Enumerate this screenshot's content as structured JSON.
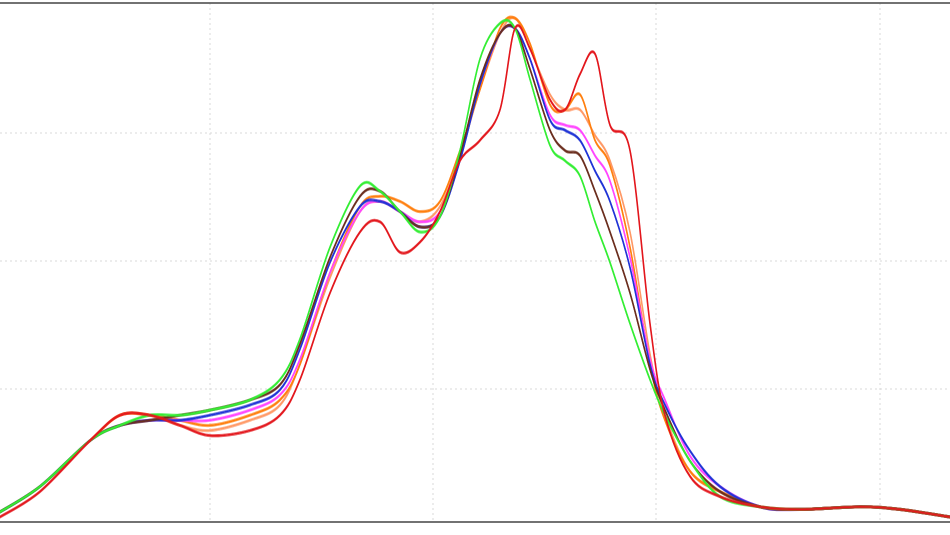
{
  "chart_data": {
    "type": "line",
    "title": "",
    "xlabel": "",
    "ylabel": "",
    "grid": true,
    "legend": "none",
    "xlim": [
      0,
      950
    ],
    "ylim": [
      0,
      1
    ],
    "series": [
      {
        "color": "#ff9966",
        "points": [
          [
            0,
            0.01
          ],
          [
            40,
            0.06
          ],
          [
            90,
            0.15
          ],
          [
            120,
            0.2
          ],
          [
            150,
            0.2
          ],
          [
            180,
            0.18
          ],
          [
            210,
            0.17
          ],
          [
            250,
            0.19
          ],
          [
            280,
            0.22
          ],
          [
            300,
            0.3
          ],
          [
            330,
            0.47
          ],
          [
            360,
            0.6
          ],
          [
            380,
            0.62
          ],
          [
            400,
            0.6
          ],
          [
            420,
            0.58
          ],
          [
            440,
            0.61
          ],
          [
            460,
            0.71
          ],
          [
            480,
            0.84
          ],
          [
            500,
            0.95
          ],
          [
            515,
            0.98
          ],
          [
            530,
            0.92
          ],
          [
            550,
            0.83
          ],
          [
            565,
            0.8
          ],
          [
            580,
            0.8
          ],
          [
            595,
            0.75
          ],
          [
            610,
            0.7
          ],
          [
            630,
            0.56
          ],
          [
            650,
            0.32
          ],
          [
            665,
            0.2
          ],
          [
            690,
            0.09
          ],
          [
            720,
            0.05
          ],
          [
            760,
            0.02
          ],
          [
            800,
            0.015
          ],
          [
            860,
            0.02
          ],
          [
            900,
            0.015
          ],
          [
            950,
            0.0
          ]
        ]
      },
      {
        "color": "#ff7f0e",
        "points": [
          [
            0,
            0.01
          ],
          [
            40,
            0.06
          ],
          [
            90,
            0.15
          ],
          [
            120,
            0.2
          ],
          [
            150,
            0.2
          ],
          [
            180,
            0.19
          ],
          [
            210,
            0.18
          ],
          [
            250,
            0.2
          ],
          [
            280,
            0.23
          ],
          [
            300,
            0.3
          ],
          [
            330,
            0.48
          ],
          [
            360,
            0.61
          ],
          [
            380,
            0.63
          ],
          [
            400,
            0.62
          ],
          [
            420,
            0.6
          ],
          [
            440,
            0.62
          ],
          [
            460,
            0.72
          ],
          [
            480,
            0.84
          ],
          [
            500,
            0.96
          ],
          [
            515,
            0.98
          ],
          [
            530,
            0.93
          ],
          [
            550,
            0.81
          ],
          [
            565,
            0.8
          ],
          [
            580,
            0.83
          ],
          [
            595,
            0.74
          ],
          [
            610,
            0.69
          ],
          [
            630,
            0.53
          ],
          [
            650,
            0.3
          ],
          [
            665,
            0.19
          ],
          [
            690,
            0.09
          ],
          [
            720,
            0.05
          ],
          [
            760,
            0.02
          ],
          [
            800,
            0.015
          ],
          [
            860,
            0.02
          ],
          [
            900,
            0.015
          ],
          [
            950,
            0.0
          ]
        ]
      },
      {
        "color": "#ff44ff",
        "points": [
          [
            0,
            0.01
          ],
          [
            40,
            0.06
          ],
          [
            90,
            0.15
          ],
          [
            120,
            0.18
          ],
          [
            150,
            0.19
          ],
          [
            180,
            0.19
          ],
          [
            210,
            0.19
          ],
          [
            250,
            0.21
          ],
          [
            280,
            0.24
          ],
          [
            300,
            0.31
          ],
          [
            330,
            0.48
          ],
          [
            360,
            0.6
          ],
          [
            380,
            0.62
          ],
          [
            400,
            0.6
          ],
          [
            420,
            0.58
          ],
          [
            440,
            0.6
          ],
          [
            460,
            0.71
          ],
          [
            480,
            0.85
          ],
          [
            500,
            0.95
          ],
          [
            515,
            0.96
          ],
          [
            530,
            0.9
          ],
          [
            550,
            0.79
          ],
          [
            565,
            0.77
          ],
          [
            580,
            0.76
          ],
          [
            595,
            0.71
          ],
          [
            610,
            0.66
          ],
          [
            630,
            0.51
          ],
          [
            650,
            0.31
          ],
          [
            665,
            0.23
          ],
          [
            690,
            0.12
          ],
          [
            720,
            0.06
          ],
          [
            760,
            0.02
          ],
          [
            800,
            0.015
          ],
          [
            860,
            0.02
          ],
          [
            900,
            0.015
          ],
          [
            950,
            0.0
          ]
        ]
      },
      {
        "color": "#1f33d6",
        "points": [
          [
            0,
            0.01
          ],
          [
            40,
            0.06
          ],
          [
            90,
            0.15
          ],
          [
            120,
            0.18
          ],
          [
            150,
            0.19
          ],
          [
            180,
            0.19
          ],
          [
            210,
            0.2
          ],
          [
            250,
            0.22
          ],
          [
            280,
            0.25
          ],
          [
            300,
            0.33
          ],
          [
            330,
            0.5
          ],
          [
            360,
            0.61
          ],
          [
            380,
            0.62
          ],
          [
            400,
            0.6
          ],
          [
            420,
            0.57
          ],
          [
            440,
            0.59
          ],
          [
            460,
            0.7
          ],
          [
            480,
            0.85
          ],
          [
            500,
            0.95
          ],
          [
            515,
            0.96
          ],
          [
            530,
            0.9
          ],
          [
            550,
            0.78
          ],
          [
            565,
            0.76
          ],
          [
            580,
            0.74
          ],
          [
            595,
            0.68
          ],
          [
            610,
            0.62
          ],
          [
            630,
            0.49
          ],
          [
            650,
            0.3
          ],
          [
            665,
            0.22
          ],
          [
            690,
            0.13
          ],
          [
            720,
            0.06
          ],
          [
            760,
            0.02
          ],
          [
            800,
            0.015
          ],
          [
            860,
            0.02
          ],
          [
            900,
            0.015
          ],
          [
            950,
            0.0
          ]
        ]
      },
      {
        "color": "#6b2e1e",
        "points": [
          [
            0,
            0.01
          ],
          [
            40,
            0.06
          ],
          [
            90,
            0.15
          ],
          [
            120,
            0.18
          ],
          [
            150,
            0.19
          ],
          [
            180,
            0.2
          ],
          [
            210,
            0.21
          ],
          [
            250,
            0.23
          ],
          [
            280,
            0.26
          ],
          [
            300,
            0.34
          ],
          [
            330,
            0.51
          ],
          [
            360,
            0.63
          ],
          [
            380,
            0.64
          ],
          [
            400,
            0.6
          ],
          [
            420,
            0.57
          ],
          [
            440,
            0.59
          ],
          [
            460,
            0.71
          ],
          [
            480,
            0.86
          ],
          [
            500,
            0.95
          ],
          [
            515,
            0.96
          ],
          [
            530,
            0.88
          ],
          [
            550,
            0.76
          ],
          [
            565,
            0.72
          ],
          [
            580,
            0.71
          ],
          [
            595,
            0.64
          ],
          [
            610,
            0.56
          ],
          [
            630,
            0.44
          ],
          [
            650,
            0.29
          ],
          [
            665,
            0.21
          ],
          [
            690,
            0.11
          ],
          [
            720,
            0.05
          ],
          [
            760,
            0.02
          ],
          [
            800,
            0.015
          ],
          [
            860,
            0.02
          ],
          [
            900,
            0.015
          ],
          [
            950,
            0.0
          ]
        ]
      },
      {
        "color": "#33ee33",
        "points": [
          [
            0,
            0.01
          ],
          [
            40,
            0.06
          ],
          [
            90,
            0.15
          ],
          [
            120,
            0.18
          ],
          [
            150,
            0.2
          ],
          [
            180,
            0.2
          ],
          [
            210,
            0.21
          ],
          [
            250,
            0.23
          ],
          [
            280,
            0.27
          ],
          [
            300,
            0.35
          ],
          [
            330,
            0.53
          ],
          [
            360,
            0.65
          ],
          [
            380,
            0.64
          ],
          [
            400,
            0.6
          ],
          [
            420,
            0.56
          ],
          [
            440,
            0.59
          ],
          [
            460,
            0.72
          ],
          [
            480,
            0.9
          ],
          [
            500,
            0.97
          ],
          [
            515,
            0.96
          ],
          [
            530,
            0.86
          ],
          [
            550,
            0.73
          ],
          [
            565,
            0.7
          ],
          [
            580,
            0.67
          ],
          [
            595,
            0.58
          ],
          [
            610,
            0.5
          ],
          [
            630,
            0.38
          ],
          [
            650,
            0.27
          ],
          [
            665,
            0.2
          ],
          [
            690,
            0.11
          ],
          [
            720,
            0.04
          ],
          [
            760,
            0.02
          ],
          [
            800,
            0.015
          ],
          [
            860,
            0.02
          ],
          [
            900,
            0.015
          ],
          [
            950,
            0.0
          ]
        ]
      },
      {
        "color": "#e3171d",
        "points": [
          [
            0,
            0.0
          ],
          [
            40,
            0.05
          ],
          [
            90,
            0.15
          ],
          [
            120,
            0.2
          ],
          [
            150,
            0.2
          ],
          [
            180,
            0.18
          ],
          [
            210,
            0.16
          ],
          [
            250,
            0.17
          ],
          [
            280,
            0.2
          ],
          [
            300,
            0.27
          ],
          [
            330,
            0.44
          ],
          [
            360,
            0.56
          ],
          [
            380,
            0.58
          ],
          [
            400,
            0.52
          ],
          [
            420,
            0.54
          ],
          [
            440,
            0.6
          ],
          [
            460,
            0.7
          ],
          [
            480,
            0.74
          ],
          [
            500,
            0.8
          ],
          [
            515,
            0.96
          ],
          [
            530,
            0.92
          ],
          [
            550,
            0.82
          ],
          [
            565,
            0.8
          ],
          [
            580,
            0.87
          ],
          [
            595,
            0.91
          ],
          [
            610,
            0.77
          ],
          [
            630,
            0.72
          ],
          [
            650,
            0.38
          ],
          [
            665,
            0.2
          ],
          [
            690,
            0.08
          ],
          [
            720,
            0.04
          ],
          [
            760,
            0.02
          ],
          [
            800,
            0.015
          ],
          [
            860,
            0.02
          ],
          [
            900,
            0.015
          ],
          [
            950,
            0.0
          ]
        ]
      }
    ]
  }
}
